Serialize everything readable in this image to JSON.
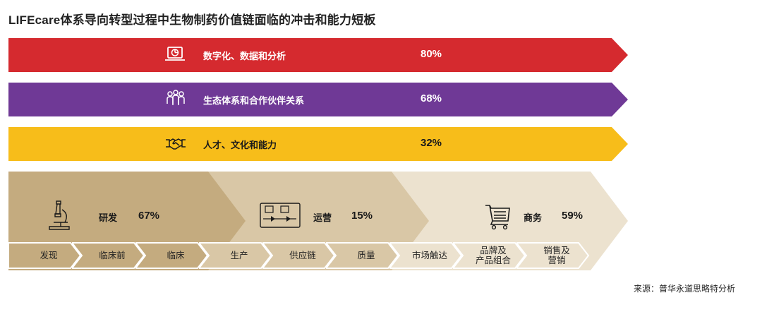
{
  "title": "LIFEcare体系导向转型过程中生物制药价值链面临的冲击和能力短板",
  "bands": [
    {
      "icon": "pie-chart-monitor-icon",
      "label": "数字化、数据和分析",
      "percent": "80%",
      "color": "#d52a2f"
    },
    {
      "icon": "people-group-icon",
      "label": "生态体系和合作伙伴关系",
      "percent": "68%",
      "color": "#6f3996"
    },
    {
      "icon": "handshake-icon",
      "label": "人才、文化和能力",
      "percent": "32%",
      "color": "#f7bd1a"
    }
  ],
  "segments": [
    {
      "icon": "microscope-icon",
      "label": "研发",
      "percent": "67%",
      "color": "#c4ab7f"
    },
    {
      "icon": "operations-board-icon",
      "label": "运营",
      "percent": "15%",
      "color": "#d9c7a6"
    },
    {
      "icon": "shopping-cart-icon",
      "label": "商务",
      "percent": "59%",
      "color": "#ece2cf"
    }
  ],
  "steps": [
    {
      "label": "发现"
    },
    {
      "label": "临床前"
    },
    {
      "label": "临床"
    },
    {
      "label": "生产"
    },
    {
      "label": "供应链"
    },
    {
      "label": "质量"
    },
    {
      "label": "市场触达"
    },
    {
      "label": "品牌及\n产品组合"
    },
    {
      "label": "销售及\n营销"
    }
  ],
  "source": "来源：普华永道思略特分析"
}
